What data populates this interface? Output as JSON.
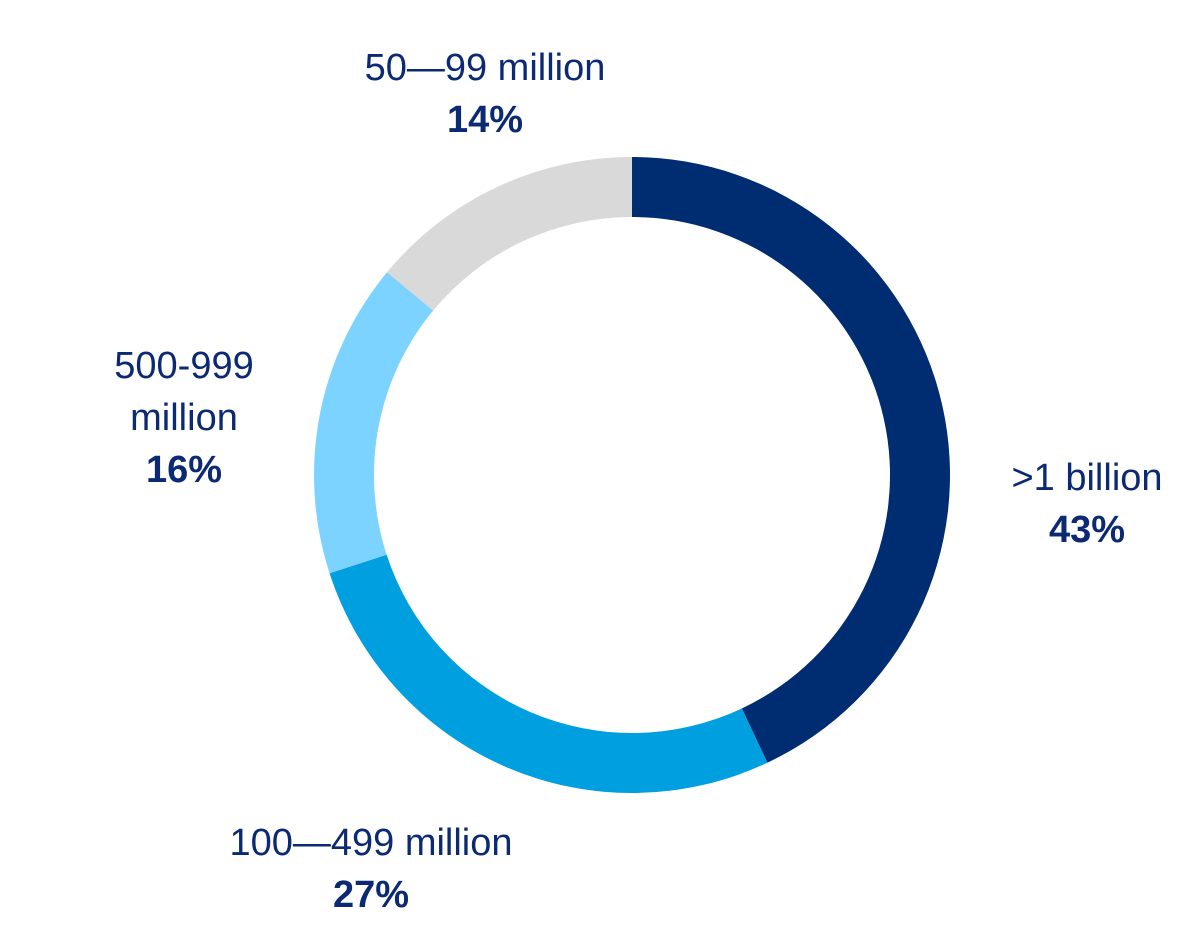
{
  "chart_data": {
    "type": "pie",
    "variant": "donut",
    "title": "",
    "categories": [
      ">1 billion",
      "100—499 million",
      "500-999 million",
      "50—99 million"
    ],
    "values": [
      43,
      27,
      16,
      14
    ],
    "unit": "%",
    "value_labels": [
      "43%",
      "27%",
      "16%",
      "14%"
    ],
    "name_lines": [
      [
        ">1 billion"
      ],
      [
        "100—499 million"
      ],
      [
        "500-999",
        "million"
      ],
      [
        "50—99 million"
      ]
    ],
    "colors": [
      "#002d72",
      "#009fdf",
      "#7dd3ff",
      "#d9d9d9"
    ],
    "start_angle": "top",
    "direction": "clockwise",
    "legend": "none"
  }
}
